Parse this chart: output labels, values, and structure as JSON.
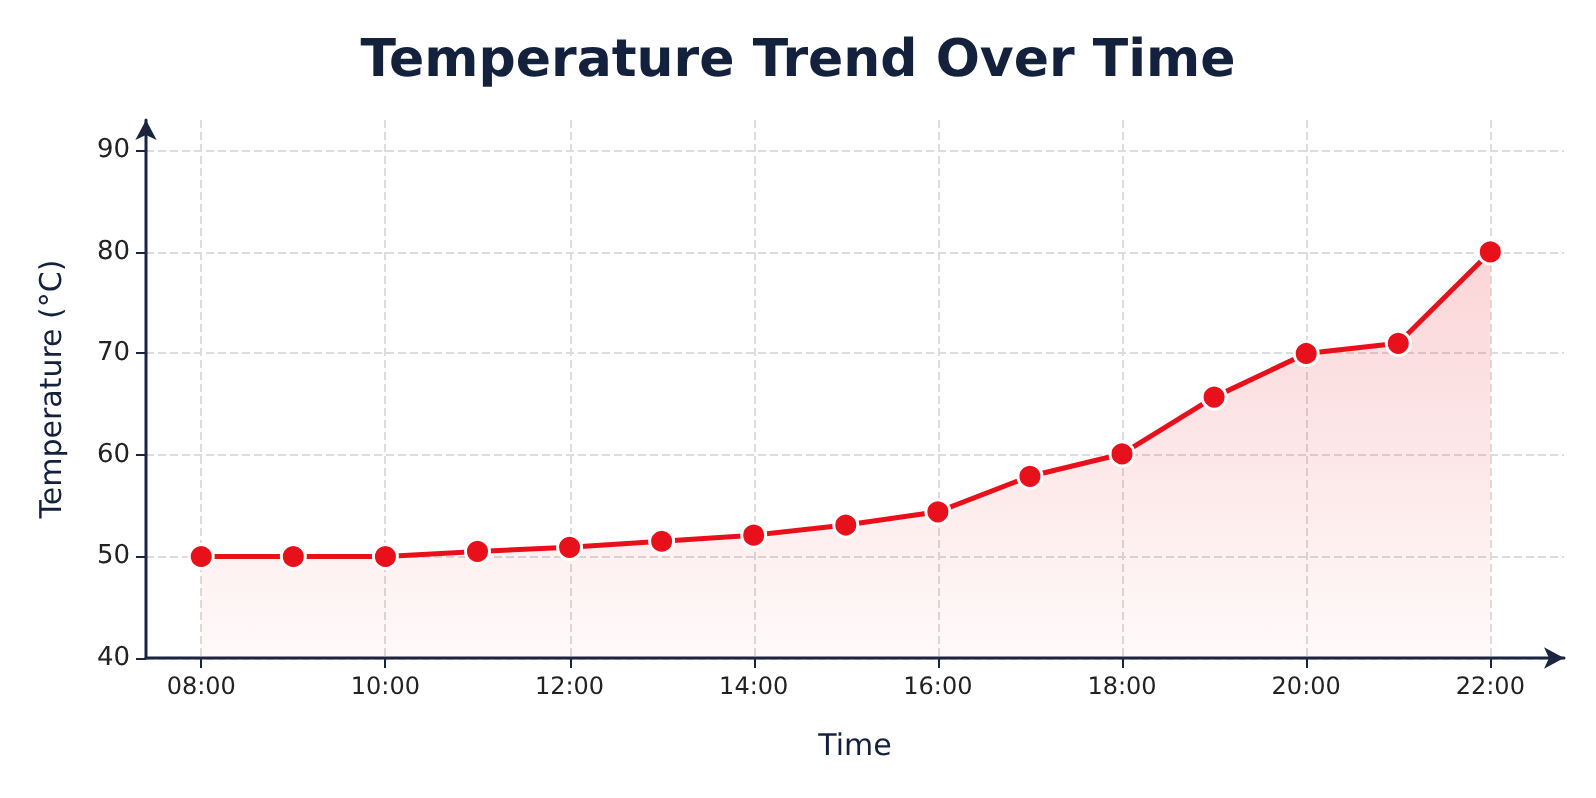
{
  "chart_data": {
    "type": "area",
    "title": "Temperature Trend Over Time",
    "xlabel": "Time",
    "ylabel": "Temperature (°C)",
    "x": [
      8,
      9,
      10,
      11,
      12,
      13,
      14,
      15,
      16,
      17,
      18,
      19,
      20,
      21,
      22
    ],
    "series": [
      {
        "color": "#e8101a",
        "values": [
          50,
          50,
          50,
          50.5,
          50.9,
          51.5,
          52.1,
          53.1,
          54.4,
          57.9,
          60.1,
          65.7,
          70,
          71,
          80
        ]
      }
    ],
    "xlim": [
      7.4,
      22.8
    ],
    "xticks": [
      {
        "value": 8,
        "label": "08:00"
      },
      {
        "value": 10,
        "label": "10:00"
      },
      {
        "value": 12,
        "label": "12:00"
      },
      {
        "value": 14,
        "label": "14:00"
      },
      {
        "value": 16,
        "label": "16:00"
      },
      {
        "value": 18,
        "label": "18:00"
      },
      {
        "value": 20,
        "label": "20:00"
      },
      {
        "value": 22,
        "label": "22:00"
      }
    ],
    "ylim": [
      40,
      93
    ],
    "yticks": [
      40,
      50,
      60,
      70,
      80,
      90
    ],
    "grid": true,
    "marker": "circle",
    "line_style": "solid"
  }
}
